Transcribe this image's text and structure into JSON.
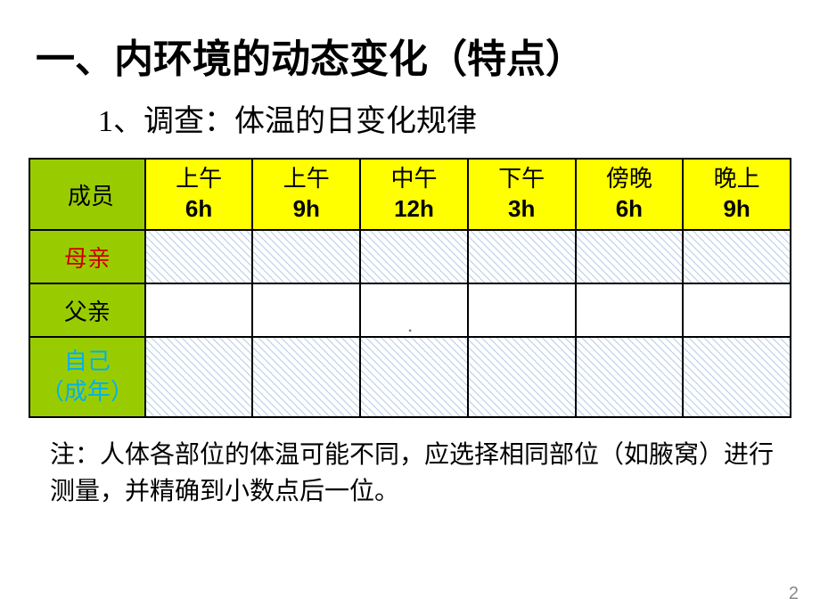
{
  "title": "一、内环境的动态变化（特点）",
  "subtitle": "1、调查：体温的日变化规律",
  "table": {
    "member_header": "成员",
    "time_headers": [
      {
        "period": "上午",
        "hour": "6h"
      },
      {
        "period": "上午",
        "hour": "9h"
      },
      {
        "period": "中午",
        "hour": "12h"
      },
      {
        "period": "下午",
        "hour": "3h"
      },
      {
        "period": "傍晚",
        "hour": "6h"
      },
      {
        "period": "晚上",
        "hour": "9h"
      }
    ],
    "rows": [
      {
        "label": "母亲",
        "color_class": "member-mother",
        "pattern": "hatch",
        "tall": false
      },
      {
        "label": "父亲",
        "color_class": "member-father",
        "pattern": "blank",
        "tall": false
      },
      {
        "label_line1": "自己",
        "label_line2": "（成年）",
        "color_class": "member-self",
        "pattern": "hatch",
        "tall": true
      }
    ],
    "colors": {
      "header_member_bg": "#99cc00",
      "header_time_bg": "#ffff00",
      "border": "#000000",
      "hatch_line": "#b8cde8",
      "hatch_bg": "#ffffff"
    }
  },
  "note": "注：人体各部位的体温可能不同，应选择相同部位（如腋窝）进行测量，并精确到小数点后一位。",
  "page_number": "2"
}
